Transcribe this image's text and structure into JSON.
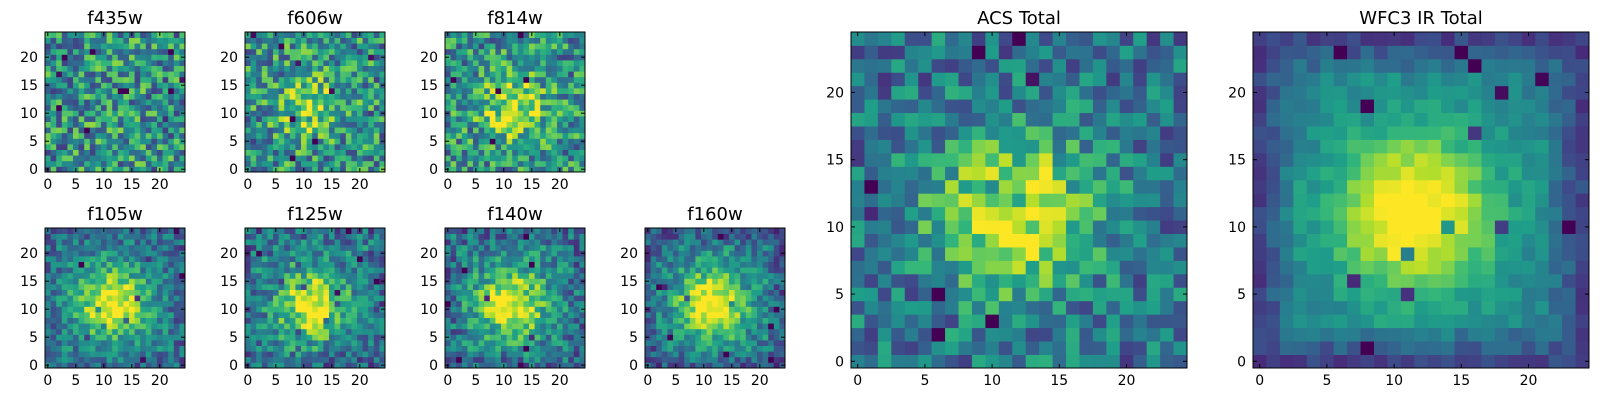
{
  "figure": {
    "layout": "grid of image panels",
    "colormap": "viridis"
  },
  "chart_data": [
    {
      "type": "heatmap",
      "title": "f435w",
      "colormap": "viridis",
      "size": [
        25,
        25
      ],
      "x_ticks": [
        0,
        5,
        10,
        15,
        20
      ],
      "y_ticks": [
        0,
        5,
        10,
        15,
        20
      ],
      "source_strength": 0.05,
      "noise": 0.4,
      "core": 0.0,
      "edge_dark": 0.0
    },
    {
      "type": "heatmap",
      "title": "f606w",
      "colormap": "viridis",
      "size": [
        25,
        25
      ],
      "x_ticks": [
        0,
        5,
        10,
        15,
        20
      ],
      "y_ticks": [
        0,
        5,
        10,
        15,
        20
      ],
      "source_strength": 0.3,
      "noise": 0.4,
      "core": 0.0,
      "edge_dark": 0.0
    },
    {
      "type": "heatmap",
      "title": "f814w",
      "colormap": "viridis",
      "size": [
        25,
        25
      ],
      "x_ticks": [
        0,
        5,
        10,
        15,
        20
      ],
      "y_ticks": [
        0,
        5,
        10,
        15,
        20
      ],
      "source_strength": 0.38,
      "noise": 0.38,
      "core": 0.0,
      "edge_dark": 0.0
    },
    {
      "type": "heatmap",
      "title": "f105w",
      "colormap": "viridis",
      "size": [
        25,
        25
      ],
      "x_ticks": [
        0,
        5,
        10,
        15,
        20
      ],
      "y_ticks": [
        0,
        5,
        10,
        15,
        20
      ],
      "source_strength": 0.45,
      "noise": 0.25,
      "core": 0.25,
      "edge_dark": 0.1
    },
    {
      "type": "heatmap",
      "title": "f125w",
      "colormap": "viridis",
      "size": [
        25,
        25
      ],
      "x_ticks": [
        0,
        5,
        10,
        15,
        20
      ],
      "y_ticks": [
        0,
        5,
        10,
        15,
        20
      ],
      "source_strength": 0.42,
      "noise": 0.3,
      "core": 0.25,
      "edge_dark": 0.1
    },
    {
      "type": "heatmap",
      "title": "f140w",
      "colormap": "viridis",
      "size": [
        25,
        25
      ],
      "x_ticks": [
        0,
        5,
        10,
        15,
        20
      ],
      "y_ticks": [
        0,
        5,
        10,
        15,
        20
      ],
      "source_strength": 0.45,
      "noise": 0.28,
      "core": 0.25,
      "edge_dark": 0.1
    },
    {
      "type": "heatmap",
      "title": "f160w",
      "colormap": "viridis",
      "size": [
        25,
        25
      ],
      "x_ticks": [
        0,
        5,
        10,
        15,
        20
      ],
      "y_ticks": [
        0,
        5,
        10,
        15,
        20
      ],
      "source_strength": 0.5,
      "noise": 0.25,
      "core": 0.25,
      "edge_dark": 0.15
    },
    {
      "type": "heatmap",
      "title": "ACS Total",
      "colormap": "viridis",
      "size": [
        25,
        25
      ],
      "x_ticks": [
        0,
        5,
        10,
        15,
        20
      ],
      "y_ticks": [
        0,
        5,
        10,
        15,
        20
      ],
      "source_strength": 0.38,
      "noise": 0.3,
      "core": 0.4,
      "edge_dark": 0.0
    },
    {
      "type": "heatmap",
      "title": "WFC3 IR Total",
      "colormap": "viridis",
      "size": [
        25,
        25
      ],
      "x_ticks": [
        0,
        5,
        10,
        15,
        20
      ],
      "y_ticks": [
        0,
        5,
        10,
        15,
        20
      ],
      "source_strength": 0.55,
      "noise": 0.1,
      "core": 0.18,
      "edge_dark": 0.25
    }
  ]
}
